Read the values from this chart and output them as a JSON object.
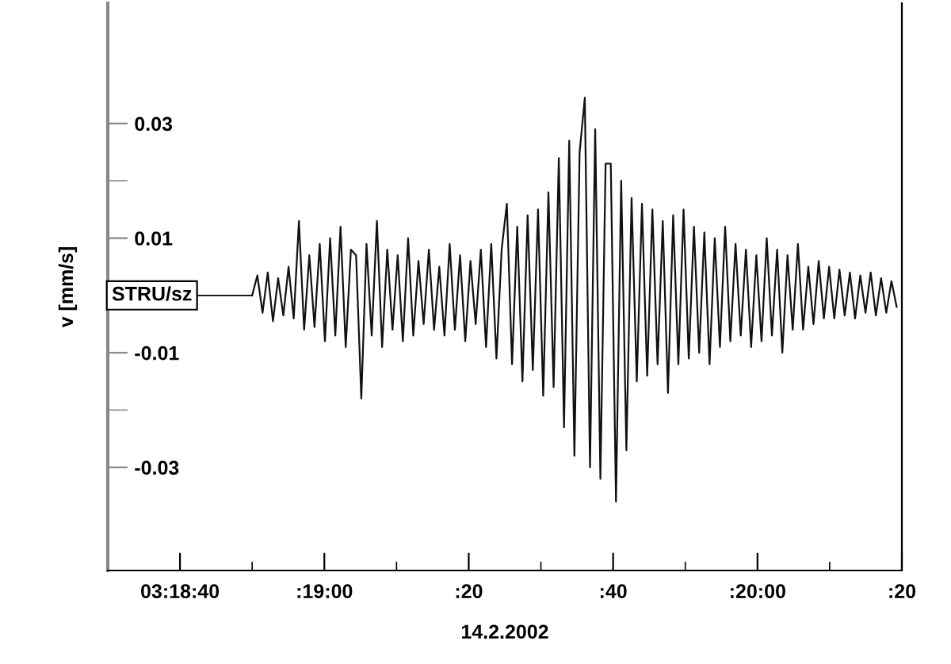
{
  "chart_data": {
    "type": "line",
    "xlabel": "14.2.2002",
    "ylabel": "v [mm/s]",
    "annotations": [
      {
        "text": "STRU/sz",
        "x": "2002-02-14T03:18:50",
        "y": 0
      }
    ],
    "xlim": [
      "2002-02-14T03:18:30",
      "2002-02-14T03:20:20"
    ],
    "xticks": [
      {
        "value": "2002-02-14T03:18:40",
        "label": "03:18:40"
      },
      {
        "value": "2002-02-14T03:18:50",
        "label": null
      },
      {
        "value": "2002-02-14T03:19:00",
        "label": ":19:00"
      },
      {
        "value": "2002-02-14T03:19:10",
        "label": null
      },
      {
        "value": "2002-02-14T03:19:20",
        "label": ":20"
      },
      {
        "value": "2002-02-14T03:19:30",
        "label": null
      },
      {
        "value": "2002-02-14T03:19:40",
        "label": ":40"
      },
      {
        "value": "2002-02-14T03:19:50",
        "label": null
      },
      {
        "value": "2002-02-14T03:20:00",
        "label": ":20:00"
      },
      {
        "value": "2002-02-14T03:20:10",
        "label": null
      },
      {
        "value": "2002-02-14T03:20:20",
        "label": ":20"
      }
    ],
    "ylim": [
      -0.048,
      0.051
    ],
    "yticks": [
      {
        "value": -0.03,
        "label": "-0.03"
      },
      {
        "value": -0.02,
        "label": null
      },
      {
        "value": -0.01,
        "label": "-0.01"
      },
      {
        "value": 0.01,
        "label": "0.01"
      },
      {
        "value": 0.02,
        "label": null
      },
      {
        "value": 0.03,
        "label": "0.03"
      }
    ],
    "grid": false,
    "legend": false,
    "marker": "none",
    "line_style": "solid",
    "series": [
      {
        "color": "#111111",
        "x": [
          "2002-02-14T03:18:50.00",
          "2002-02-14T03:18:50.72",
          "2002-02-14T03:18:51.44",
          "2002-02-14T03:18:52.16",
          "2002-02-14T03:18:52.88",
          "2002-02-14T03:18:53.60",
          "2002-02-14T03:18:54.32",
          "2002-02-14T03:18:55.04",
          "2002-02-14T03:18:55.76",
          "2002-02-14T03:18:56.48",
          "2002-02-14T03:18:57.20",
          "2002-02-14T03:18:57.92",
          "2002-02-14T03:18:58.64",
          "2002-02-14T03:18:59.36",
          "2002-02-14T03:19:00.08",
          "2002-02-14T03:19:00.80",
          "2002-02-14T03:19:01.52",
          "2002-02-14T03:19:02.24",
          "2002-02-14T03:19:02.96",
          "2002-02-14T03:19:03.68",
          "2002-02-14T03:19:04.40",
          "2002-02-14T03:19:05.12",
          "2002-02-14T03:19:05.84",
          "2002-02-14T03:19:06.56",
          "2002-02-14T03:19:07.28",
          "2002-02-14T03:19:08.00",
          "2002-02-14T03:19:08.72",
          "2002-02-14T03:19:09.44",
          "2002-02-14T03:19:10.16",
          "2002-02-14T03:19:10.88",
          "2002-02-14T03:19:11.60",
          "2002-02-14T03:19:12.32",
          "2002-02-14T03:19:13.04",
          "2002-02-14T03:19:13.76",
          "2002-02-14T03:19:14.48",
          "2002-02-14T03:19:15.20",
          "2002-02-14T03:19:15.92",
          "2002-02-14T03:19:16.64",
          "2002-02-14T03:19:17.36",
          "2002-02-14T03:19:18.08",
          "2002-02-14T03:19:18.80",
          "2002-02-14T03:19:19.52",
          "2002-02-14T03:19:20.24",
          "2002-02-14T03:19:20.96",
          "2002-02-14T03:19:21.68",
          "2002-02-14T03:19:22.40",
          "2002-02-14T03:19:23.12",
          "2002-02-14T03:19:23.84",
          "2002-02-14T03:19:24.56",
          "2002-02-14T03:19:25.28",
          "2002-02-14T03:19:26.00",
          "2002-02-14T03:19:26.72",
          "2002-02-14T03:19:27.44",
          "2002-02-14T03:19:28.16",
          "2002-02-14T03:19:28.88",
          "2002-02-14T03:19:29.60",
          "2002-02-14T03:19:30.32",
          "2002-02-14T03:19:31.04",
          "2002-02-14T03:19:31.76",
          "2002-02-14T03:19:32.48",
          "2002-02-14T03:19:33.20",
          "2002-02-14T03:19:33.92",
          "2002-02-14T03:19:34.64",
          "2002-02-14T03:19:35.36",
          "2002-02-14T03:19:36.08",
          "2002-02-14T03:19:36.80",
          "2002-02-14T03:19:37.52",
          "2002-02-14T03:19:38.24",
          "2002-02-14T03:19:38.96",
          "2002-02-14T03:19:39.68",
          "2002-02-14T03:19:40.40",
          "2002-02-14T03:19:41.12",
          "2002-02-14T03:19:41.84",
          "2002-02-14T03:19:42.56",
          "2002-02-14T03:19:43.28",
          "2002-02-14T03:19:44.00",
          "2002-02-14T03:19:44.72",
          "2002-02-14T03:19:45.44",
          "2002-02-14T03:19:46.16",
          "2002-02-14T03:19:46.88",
          "2002-02-14T03:19:47.60",
          "2002-02-14T03:19:48.32",
          "2002-02-14T03:19:49.04",
          "2002-02-14T03:19:49.76",
          "2002-02-14T03:19:50.48",
          "2002-02-14T03:19:51.20",
          "2002-02-14T03:19:51.92",
          "2002-02-14T03:19:52.64",
          "2002-02-14T03:19:53.36",
          "2002-02-14T03:19:54.08",
          "2002-02-14T03:19:54.80",
          "2002-02-14T03:19:55.52",
          "2002-02-14T03:19:56.24",
          "2002-02-14T03:19:56.96",
          "2002-02-14T03:19:57.68",
          "2002-02-14T03:19:58.40",
          "2002-02-14T03:19:59.12",
          "2002-02-14T03:19:59.84",
          "2002-02-14T03:20:00.56",
          "2002-02-14T03:20:01.28",
          "2002-02-14T03:20:02.00",
          "2002-02-14T03:20:02.72",
          "2002-02-14T03:20:03.44",
          "2002-02-14T03:20:04.16",
          "2002-02-14T03:20:04.88",
          "2002-02-14T03:20:05.60",
          "2002-02-14T03:20:06.32",
          "2002-02-14T03:20:07.04",
          "2002-02-14T03:20:07.76",
          "2002-02-14T03:20:08.48",
          "2002-02-14T03:20:09.20",
          "2002-02-14T03:20:09.92",
          "2002-02-14T03:20:10.64",
          "2002-02-14T03:20:11.36",
          "2002-02-14T03:20:12.08",
          "2002-02-14T03:20:12.80",
          "2002-02-14T03:20:13.52",
          "2002-02-14T03:20:14.24",
          "2002-02-14T03:20:14.96",
          "2002-02-14T03:20:15.68",
          "2002-02-14T03:20:16.40",
          "2002-02-14T03:20:17.12",
          "2002-02-14T03:20:17.84",
          "2002-02-14T03:20:18.56",
          "2002-02-14T03:20:19.28"
        ],
        "values": [
          0.0,
          0.0035,
          -0.003,
          0.004,
          -0.0045,
          0.003,
          -0.0035,
          0.005,
          -0.004,
          0.013,
          -0.006,
          0.007,
          -0.0055,
          0.009,
          -0.008,
          0.01,
          -0.007,
          0.012,
          -0.009,
          0.008,
          0.007,
          -0.018,
          0.009,
          -0.007,
          0.013,
          -0.009,
          0.008,
          -0.006,
          0.007,
          -0.008,
          0.01,
          -0.007,
          0.006,
          -0.005,
          0.008,
          -0.006,
          0.005,
          -0.007,
          0.009,
          -0.006,
          0.007,
          -0.008,
          0.006,
          -0.005,
          0.008,
          -0.009,
          0.009,
          -0.011,
          0.008,
          0.016,
          -0.012,
          0.012,
          -0.015,
          0.014,
          -0.013,
          0.015,
          -0.0175,
          0.018,
          -0.016,
          0.024,
          -0.023,
          0.027,
          -0.028,
          0.025,
          0.0345,
          -0.03,
          0.029,
          -0.032,
          0.023,
          0.023,
          -0.036,
          0.02,
          -0.027,
          0.017,
          -0.015,
          0.016,
          -0.014,
          0.015,
          -0.012,
          0.013,
          -0.017,
          0.014,
          -0.012,
          0.015,
          -0.011,
          0.012,
          -0.01,
          0.011,
          -0.012,
          0.01,
          -0.009,
          0.012,
          -0.008,
          0.009,
          -0.007,
          0.008,
          -0.009,
          0.007,
          -0.008,
          0.01,
          -0.007,
          0.008,
          -0.01,
          0.007,
          -0.006,
          0.009,
          -0.006,
          0.005,
          -0.005,
          0.006,
          -0.004,
          0.005,
          -0.004,
          0.0045,
          -0.0035,
          0.004,
          -0.004,
          0.0035,
          -0.003,
          0.004,
          -0.0035,
          0.003,
          -0.003,
          0.0025,
          -0.002
        ]
      }
    ]
  }
}
